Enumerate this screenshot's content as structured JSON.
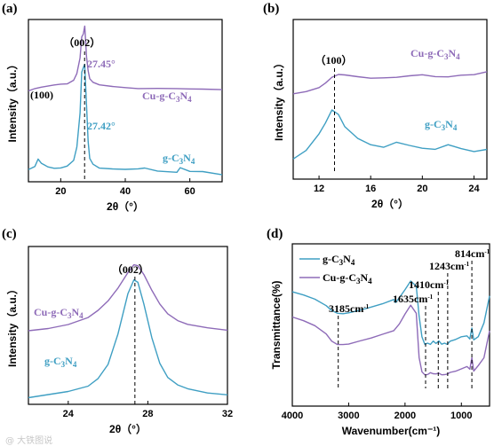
{
  "watermark": "@ 大铁图说",
  "chart_data": [
    {
      "id": "a",
      "type": "line",
      "panel_label": "(a)",
      "xlabel": "2θ（°）",
      "ylabel": "Intensity（a.u.）",
      "xlim": [
        10,
        70
      ],
      "xticks": [
        "20",
        "40",
        "60"
      ],
      "xtick_values": [
        20,
        40,
        60
      ],
      "grid": false,
      "series": [
        {
          "name": "Cu-g-C3N4",
          "color": "#8e6bb8",
          "x": [
            10,
            12,
            14,
            16,
            18,
            20,
            22,
            24,
            25,
            26,
            26.5,
            27,
            27.45,
            28,
            28.5,
            29,
            30,
            32,
            36,
            40,
            44,
            50,
            56,
            60,
            64,
            70
          ],
          "y": [
            0.61,
            0.63,
            0.64,
            0.645,
            0.65,
            0.655,
            0.66,
            0.69,
            0.74,
            0.85,
            1.0,
            1.02,
            1.08,
            0.86,
            0.76,
            0.7,
            0.67,
            0.65,
            0.64,
            0.635,
            0.63,
            0.63,
            0.625,
            0.62,
            0.62,
            0.62
          ]
        },
        {
          "name": "g-C3N4",
          "color": "#3f9fc3",
          "x": [
            10,
            12,
            13,
            14,
            15,
            16,
            18,
            20,
            22,
            24,
            25,
            26,
            26.5,
            27,
            27.42,
            28,
            28.5,
            29,
            30,
            32,
            36,
            40,
            44,
            46,
            50,
            56,
            57,
            60,
            64,
            70
          ],
          "y": [
            0.04,
            0.06,
            0.11,
            0.08,
            0.07,
            0.06,
            0.05,
            0.05,
            0.06,
            0.1,
            0.2,
            0.45,
            0.75,
            0.78,
            0.8,
            0.5,
            0.24,
            0.12,
            0.08,
            0.05,
            0.04,
            0.035,
            0.04,
            0.05,
            0.03,
            0.02,
            0.05,
            0.02,
            0.02,
            0.0
          ]
        }
      ],
      "annotations": [
        {
          "text": "（002）",
          "color": "#000000"
        },
        {
          "text": "27.45°",
          "color": "#8e6bb8"
        },
        {
          "text": "27.42°",
          "color": "#3f9fc3"
        },
        {
          "text": "(100)",
          "color": "#000000"
        },
        {
          "text": "Cu-g-C",
          "sub": "3",
          "mid": "N",
          "sub2": "4",
          "color": "#8e6bb8"
        },
        {
          "text": "g-C",
          "sub": "3",
          "mid": "N",
          "sub2": "4",
          "color": "#3f9fc3"
        }
      ]
    },
    {
      "id": "b",
      "type": "line",
      "panel_label": "(b)",
      "xlabel": "2θ（°）",
      "ylabel": "Intensity（a.u.）",
      "xlim": [
        10,
        25
      ],
      "xticks": [
        "12",
        "16",
        "20",
        "24"
      ],
      "xtick_values": [
        12,
        16,
        20,
        24
      ],
      "grid": false,
      "series": [
        {
          "name": "Cu-g-C3N4",
          "color": "#8e6bb8",
          "x": [
            10,
            11,
            12,
            12.5,
            13,
            13.5,
            14,
            15,
            16,
            17,
            18,
            19,
            20,
            21,
            22,
            23,
            24,
            25
          ],
          "y": [
            0.58,
            0.6,
            0.63,
            0.66,
            0.7,
            0.72,
            0.72,
            0.71,
            0.7,
            0.7,
            0.7,
            0.71,
            0.72,
            0.71,
            0.71,
            0.72,
            0.72,
            0.74
          ]
        },
        {
          "name": "g-C3N4",
          "color": "#3f9fc3",
          "x": [
            10,
            11,
            12,
            12.5,
            13,
            13.5,
            14,
            15,
            16,
            17,
            18,
            19,
            20,
            21,
            22,
            23,
            24,
            25
          ],
          "y": [
            0.1,
            0.16,
            0.28,
            0.36,
            0.46,
            0.43,
            0.34,
            0.25,
            0.2,
            0.18,
            0.22,
            0.2,
            0.18,
            0.17,
            0.2,
            0.17,
            0.15,
            0.17
          ]
        }
      ],
      "annotations": [
        {
          "text": "（100）",
          "color": "#000000"
        },
        {
          "text": "Cu-g-C",
          "sub": "3",
          "mid": "N",
          "sub2": "4",
          "color": "#8e6bb8"
        },
        {
          "text": "g-C",
          "sub": "3",
          "mid": "N",
          "sub2": "4",
          "color": "#3f9fc3"
        }
      ]
    },
    {
      "id": "c",
      "type": "line",
      "panel_label": "(c)",
      "xlabel": "2θ（°）",
      "ylabel": "Intensity（a.u.）",
      "xlim": [
        22,
        32
      ],
      "xticks": [
        "24",
        "28",
        "32"
      ],
      "xtick_values": [
        24,
        28,
        32
      ],
      "grid": false,
      "series": [
        {
          "name": "Cu-g-C3N4",
          "color": "#8e6bb8",
          "x": [
            22,
            23,
            24,
            25,
            25.5,
            26,
            26.5,
            27,
            27.3,
            27.5,
            27.8,
            28.2,
            28.6,
            29,
            29.5,
            30,
            31,
            32
          ],
          "y": [
            0.5,
            0.52,
            0.55,
            0.6,
            0.65,
            0.72,
            0.82,
            0.94,
            1.0,
            0.99,
            0.92,
            0.8,
            0.7,
            0.63,
            0.58,
            0.55,
            0.52,
            0.5
          ]
        },
        {
          "name": "g-C3N4",
          "color": "#3f9fc3",
          "x": [
            22,
            23,
            24,
            25,
            25.5,
            26,
            26.5,
            27,
            27.3,
            27.5,
            27.8,
            28.2,
            28.6,
            29,
            29.5,
            30,
            31,
            32
          ],
          "y": [
            0.0,
            0.02,
            0.04,
            0.08,
            0.14,
            0.25,
            0.48,
            0.78,
            0.88,
            0.86,
            0.7,
            0.45,
            0.26,
            0.15,
            0.09,
            0.06,
            0.03,
            0.02
          ]
        }
      ],
      "annotations": [
        {
          "text": "（002）",
          "color": "#000000"
        },
        {
          "text": "Cu-g-C",
          "sub": "3",
          "mid": "N",
          "sub2": "4",
          "color": "#8e6bb8"
        },
        {
          "text": "g-C",
          "sub": "3",
          "mid": "N",
          "sub2": "4",
          "color": "#3f9fc3"
        }
      ]
    },
    {
      "id": "d",
      "type": "line",
      "panel_label": "(d)",
      "xlabel": "Wavenumber(cm⁻¹)",
      "ylabel": "Transmittance(%)",
      "xlim": [
        4000,
        500
      ],
      "xticks": [
        "4000",
        "3000",
        "2000",
        "1000"
      ],
      "xtick_values": [
        4000,
        3000,
        2000,
        1000
      ],
      "grid": false,
      "legend": "top-left",
      "series": [
        {
          "name": "g-C3N4",
          "color": "#3f9fc3",
          "x": [
            4000,
            3800,
            3600,
            3400,
            3300,
            3200,
            3100,
            3000,
            2800,
            2600,
            2400,
            2200,
            2170,
            2100,
            2000,
            1900,
            1800,
            1750,
            1700,
            1650,
            1600,
            1550,
            1500,
            1450,
            1400,
            1350,
            1300,
            1250,
            1200,
            1100,
            1000,
            900,
            850,
            814,
            780,
            700,
            600,
            500
          ],
          "y": [
            0.78,
            0.76,
            0.73,
            0.68,
            0.64,
            0.62,
            0.62,
            0.63,
            0.65,
            0.67,
            0.69,
            0.72,
            0.7,
            0.74,
            0.8,
            0.86,
            0.82,
            0.6,
            0.45,
            0.4,
            0.41,
            0.4,
            0.42,
            0.4,
            0.42,
            0.4,
            0.41,
            0.4,
            0.42,
            0.43,
            0.45,
            0.46,
            0.44,
            0.52,
            0.43,
            0.45,
            0.55,
            0.75
          ]
        },
        {
          "name": "Cu-g-C3N4",
          "color": "#8e6bb8",
          "x": [
            4000,
            3800,
            3600,
            3400,
            3300,
            3200,
            3100,
            3000,
            2800,
            2600,
            2400,
            2200,
            2100,
            2000,
            1900,
            1800,
            1750,
            1700,
            1650,
            1600,
            1550,
            1500,
            1450,
            1400,
            1350,
            1300,
            1250,
            1200,
            1100,
            1000,
            900,
            850,
            814,
            780,
            700,
            600,
            500
          ],
          "y": [
            0.6,
            0.57,
            0.53,
            0.47,
            0.42,
            0.4,
            0.4,
            0.4,
            0.42,
            0.44,
            0.47,
            0.5,
            0.55,
            0.62,
            0.68,
            0.62,
            0.3,
            0.2,
            0.18,
            0.18,
            0.19,
            0.18,
            0.18,
            0.19,
            0.18,
            0.18,
            0.18,
            0.19,
            0.2,
            0.22,
            0.24,
            0.22,
            0.3,
            0.2,
            0.24,
            0.3,
            0.5
          ]
        }
      ],
      "annotations": [
        {
          "text": "3185cm",
          "sup": "-1",
          "color": "#000000"
        },
        {
          "text": "1635cm",
          "sup": "-1",
          "color": "#000000"
        },
        {
          "text": "1410cm",
          "sup": "-1",
          "color": "#000000"
        },
        {
          "text": "1243cm",
          "sup": "-1",
          "color": "#000000"
        },
        {
          "text": "814cm",
          "sup": "-1",
          "color": "#000000"
        }
      ],
      "reference_lines": [
        3185,
        1635,
        1410,
        1243,
        814
      ]
    }
  ]
}
